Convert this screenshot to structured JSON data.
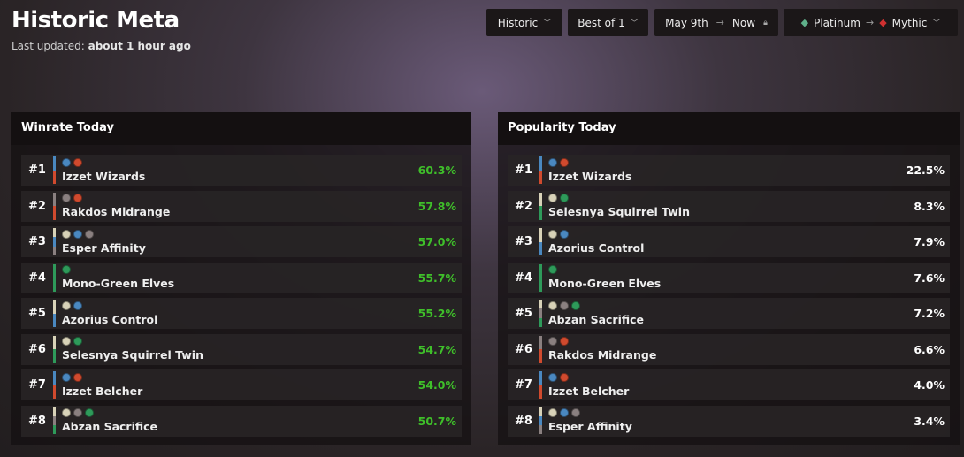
{
  "header": {
    "title": "Historic Meta",
    "updated_label": "Last updated:",
    "updated_value": "about 1 hour ago"
  },
  "filters": {
    "format": "Historic",
    "match": "Best of 1",
    "date_from": "May 9th",
    "date_to": "Now",
    "rank_from": "Platinum",
    "rank_to": "Mythic"
  },
  "colors": {
    "W": "#d8d2b8",
    "U": "#4a88c0",
    "B": "#8a8080",
    "R": "#d04a2e",
    "G": "#2e9a5a",
    "winrate": "#3fbf2a"
  },
  "winrate": {
    "title": "Winrate Today",
    "rows": [
      {
        "rank": "#1",
        "name": "Izzet Wizards",
        "colors": [
          "U",
          "R"
        ],
        "value": "60.3%"
      },
      {
        "rank": "#2",
        "name": "Rakdos Midrange",
        "colors": [
          "B",
          "R"
        ],
        "value": "57.8%"
      },
      {
        "rank": "#3",
        "name": "Esper Affinity",
        "colors": [
          "W",
          "U",
          "B"
        ],
        "value": "57.0%"
      },
      {
        "rank": "#4",
        "name": "Mono-Green Elves",
        "colors": [
          "G"
        ],
        "value": "55.7%"
      },
      {
        "rank": "#5",
        "name": "Azorius Control",
        "colors": [
          "W",
          "U"
        ],
        "value": "55.2%"
      },
      {
        "rank": "#6",
        "name": "Selesnya Squirrel Twin",
        "colors": [
          "W",
          "G"
        ],
        "value": "54.7%"
      },
      {
        "rank": "#7",
        "name": "Izzet Belcher",
        "colors": [
          "U",
          "R"
        ],
        "value": "54.0%"
      },
      {
        "rank": "#8",
        "name": "Abzan Sacrifice",
        "colors": [
          "W",
          "B",
          "G"
        ],
        "value": "50.7%"
      }
    ]
  },
  "popularity": {
    "title": "Popularity Today",
    "rows": [
      {
        "rank": "#1",
        "name": "Izzet Wizards",
        "colors": [
          "U",
          "R"
        ],
        "value": "22.5%"
      },
      {
        "rank": "#2",
        "name": "Selesnya Squirrel Twin",
        "colors": [
          "W",
          "G"
        ],
        "value": "8.3%"
      },
      {
        "rank": "#3",
        "name": "Azorius Control",
        "colors": [
          "W",
          "U"
        ],
        "value": "7.9%"
      },
      {
        "rank": "#4",
        "name": "Mono-Green Elves",
        "colors": [
          "G"
        ],
        "value": "7.6%"
      },
      {
        "rank": "#5",
        "name": "Abzan Sacrifice",
        "colors": [
          "W",
          "B",
          "G"
        ],
        "value": "7.2%"
      },
      {
        "rank": "#6",
        "name": "Rakdos Midrange",
        "colors": [
          "B",
          "R"
        ],
        "value": "6.6%"
      },
      {
        "rank": "#7",
        "name": "Izzet Belcher",
        "colors": [
          "U",
          "R"
        ],
        "value": "4.0%"
      },
      {
        "rank": "#8",
        "name": "Esper Affinity",
        "colors": [
          "W",
          "U",
          "B"
        ],
        "value": "3.4%"
      }
    ]
  }
}
